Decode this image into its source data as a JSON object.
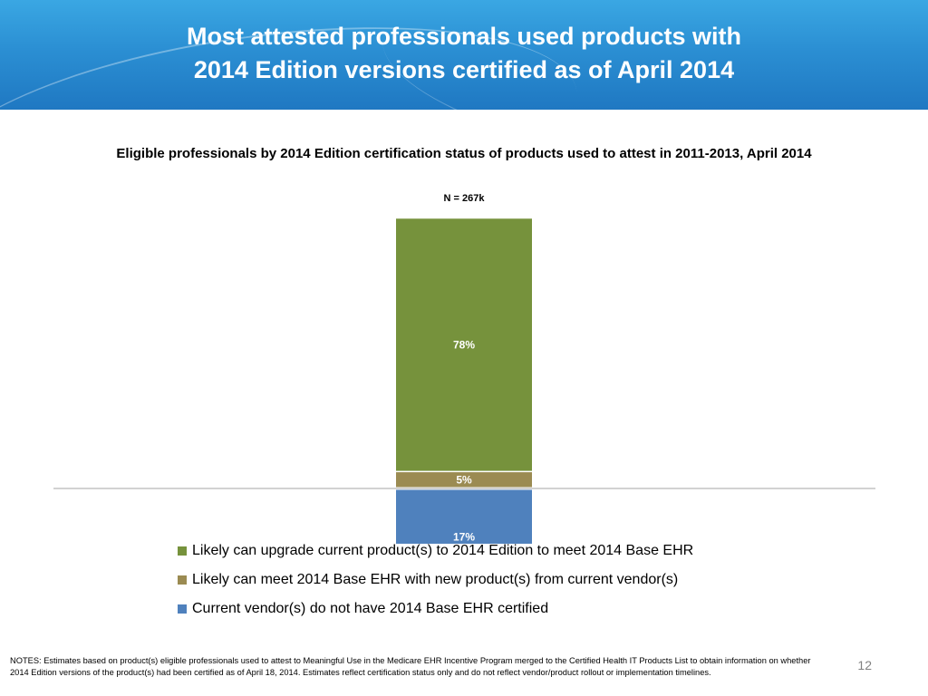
{
  "slide": {
    "title_line1": "Most attested professionals used products with",
    "title_line2": "2014 Edition versions certified as of April 2014",
    "notes": "NOTES: Estimates based on product(s) eligible professionals used to attest to Meaningful Use in the Medicare EHR Incentive Program  merged to the Certified Health IT Products List to obtain information on whether 2014 Edition versions of the product(s) had been certified as of April 18, 2014. Estimates reflect certification status only and do not reflect vendor/product rollout or implementation timelines.",
    "page_number": "12"
  },
  "chart_data": {
    "type": "bar",
    "stacked": true,
    "title": "Eligible professionals by 2014 Edition certification status of products used to attest in 2011-2013, April 2014",
    "annotation": "N = 267k",
    "categories": [
      ""
    ],
    "series": [
      {
        "name": "Current vendor(s) do not have 2014 Base EHR certified",
        "values": [
          17
        ],
        "label": "17%",
        "color": "#4f81bd",
        "position": "below-axis"
      },
      {
        "name": "Likely can meet 2014 Base EHR with new product(s) from current vendor(s)",
        "values": [
          5
        ],
        "label": "5%",
        "color": "#9b8b52"
      },
      {
        "name": "Likely can upgrade current product(s) to 2014 Edition to meet 2014 Base EHR",
        "values": [
          78
        ],
        "label": "78%",
        "color": "#76923c"
      }
    ],
    "legend_order": [
      2,
      1,
      0
    ],
    "unit": "%",
    "grid": false,
    "legend_position": "bottom"
  }
}
